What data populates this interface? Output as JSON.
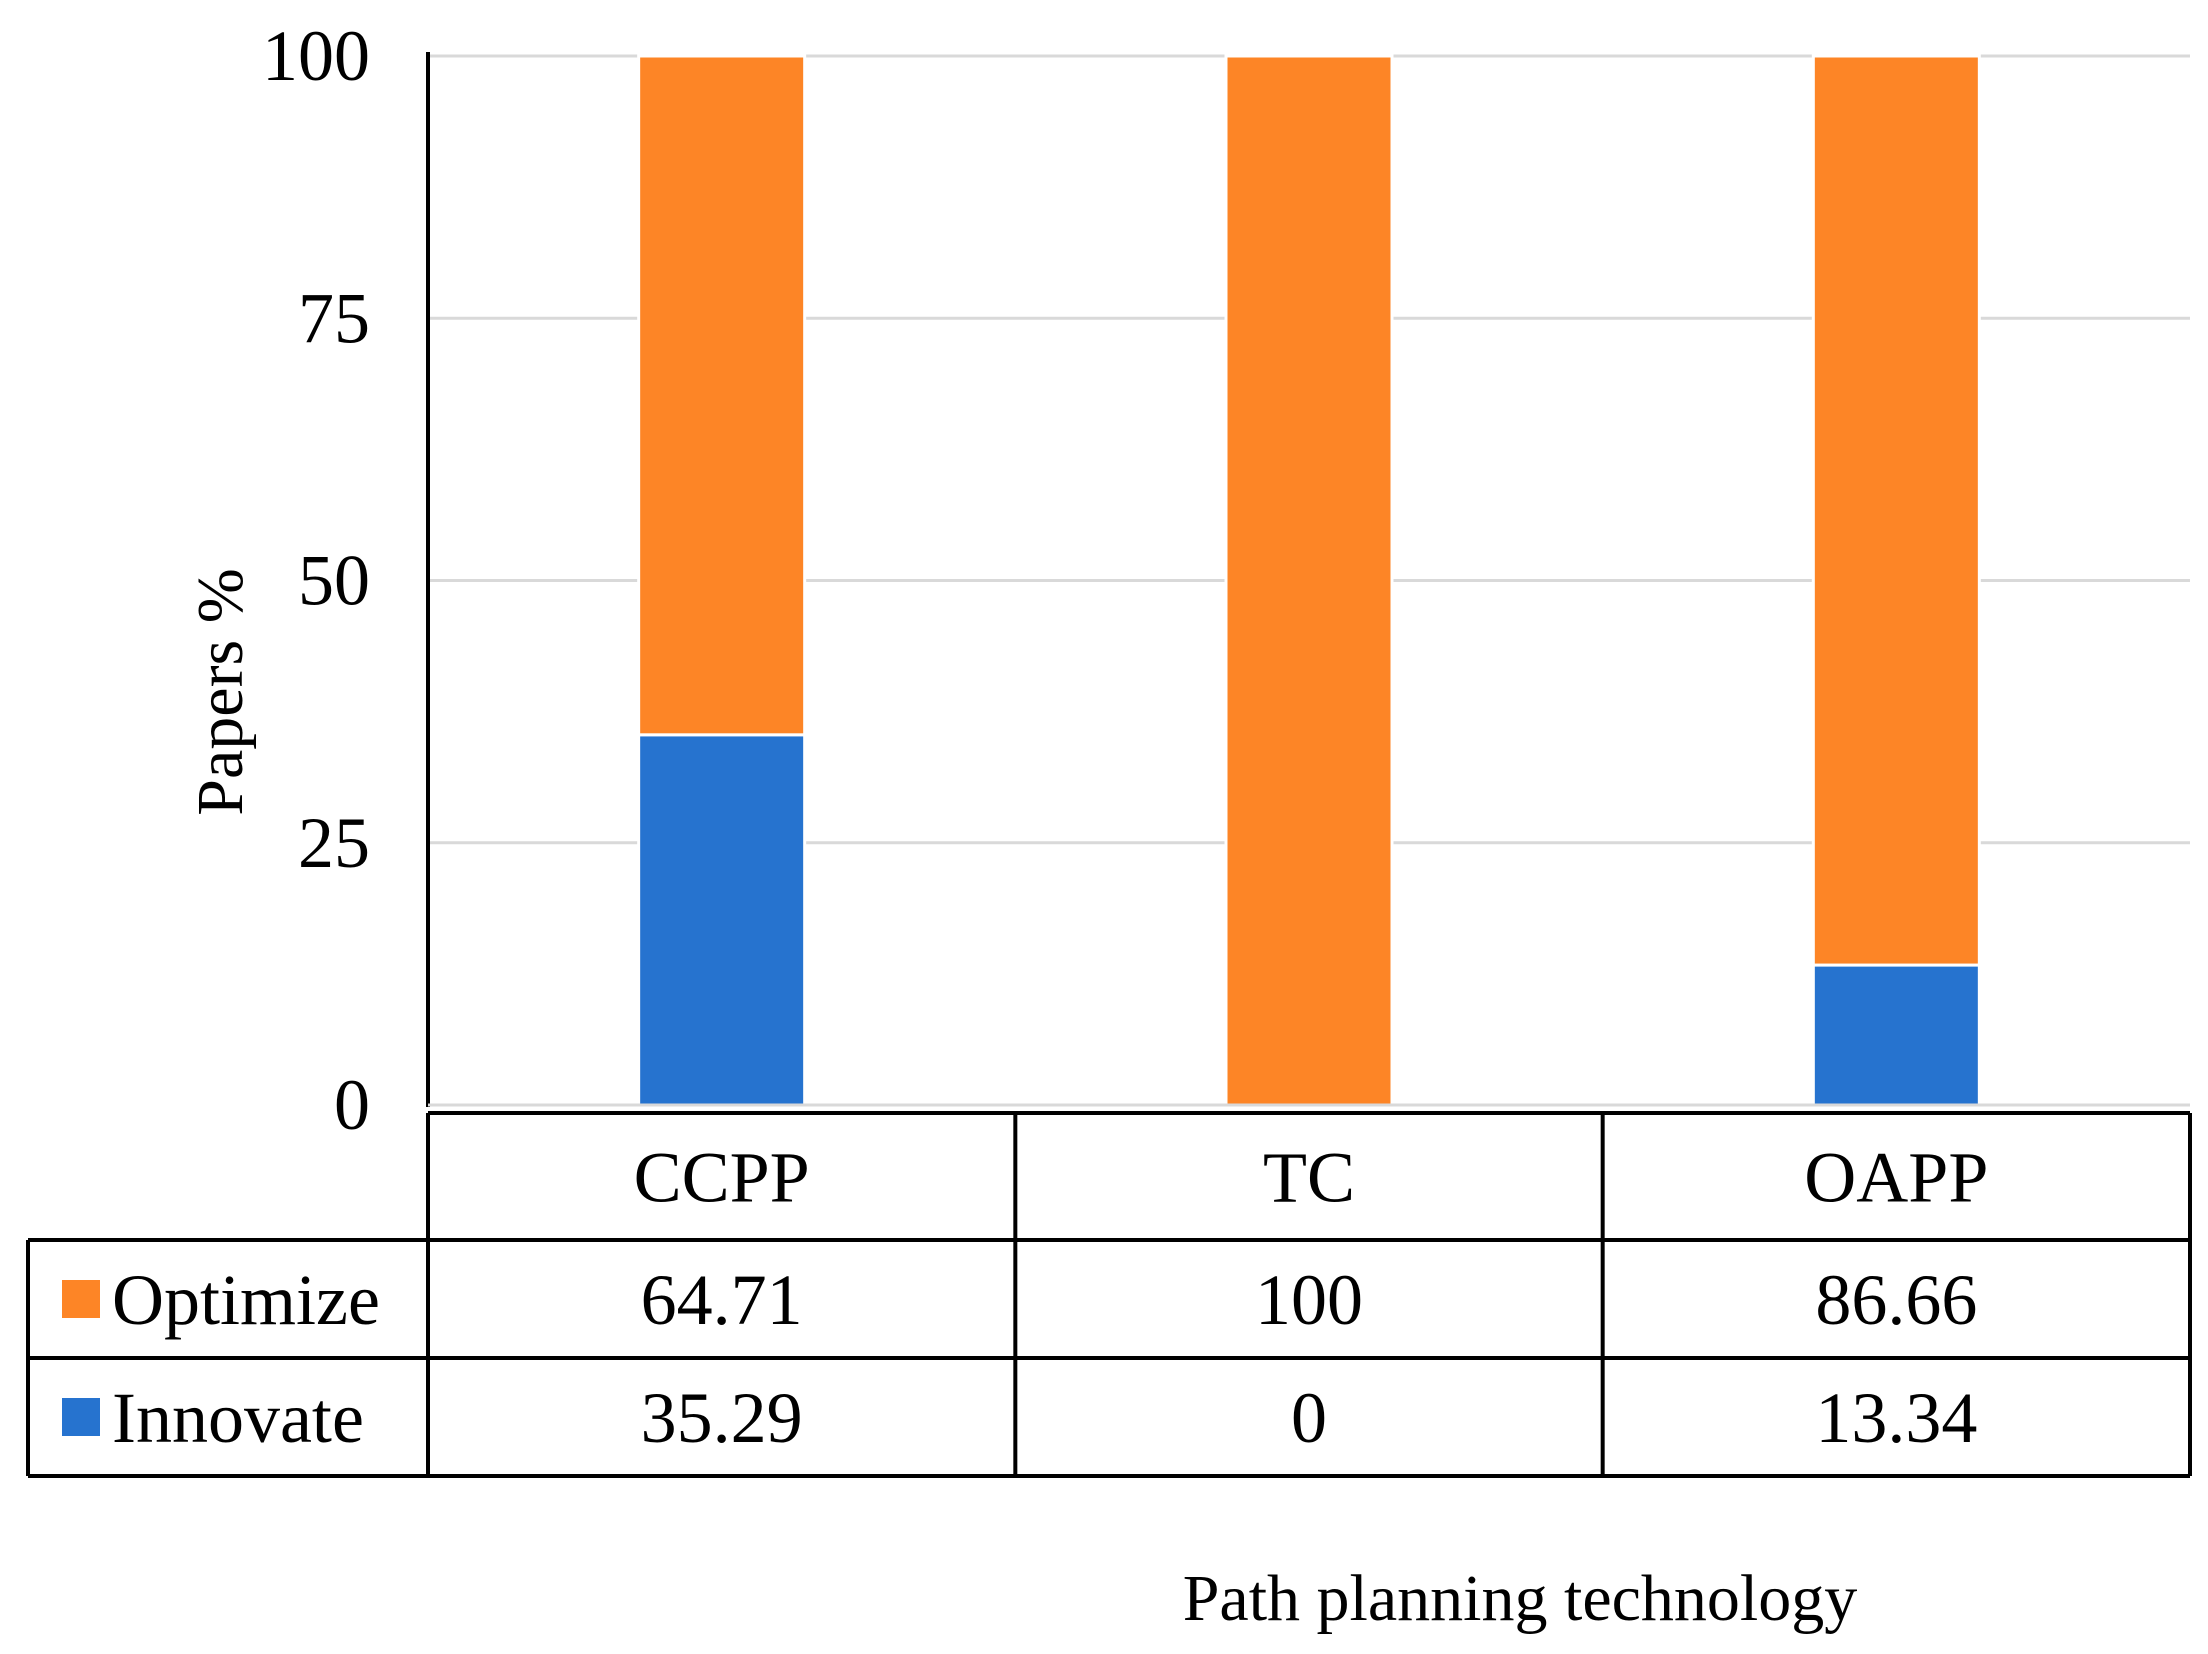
{
  "chart_data": {
    "type": "bar",
    "stacked": true,
    "categories": [
      "CCPP",
      "TC",
      "OAPP"
    ],
    "series": [
      {
        "name": "Innovate",
        "values": [
          35.29,
          0,
          13.34
        ],
        "value_labels": [
          "35.29",
          "0",
          "13.34"
        ],
        "color": "#2673cf"
      },
      {
        "name": "Optimize",
        "values": [
          64.71,
          100,
          86.66
        ],
        "value_labels": [
          "64.71",
          "100",
          "86.66"
        ],
        "color": "#fd8526"
      }
    ],
    "ylim": [
      0,
      100
    ],
    "yticks": [
      0,
      25,
      50,
      75,
      100
    ],
    "ylabel": "Papers  %",
    "xlabel": "Path planning technology",
    "grid": true,
    "data_table": true,
    "table_row_order": [
      "Optimize",
      "Innovate"
    ]
  }
}
